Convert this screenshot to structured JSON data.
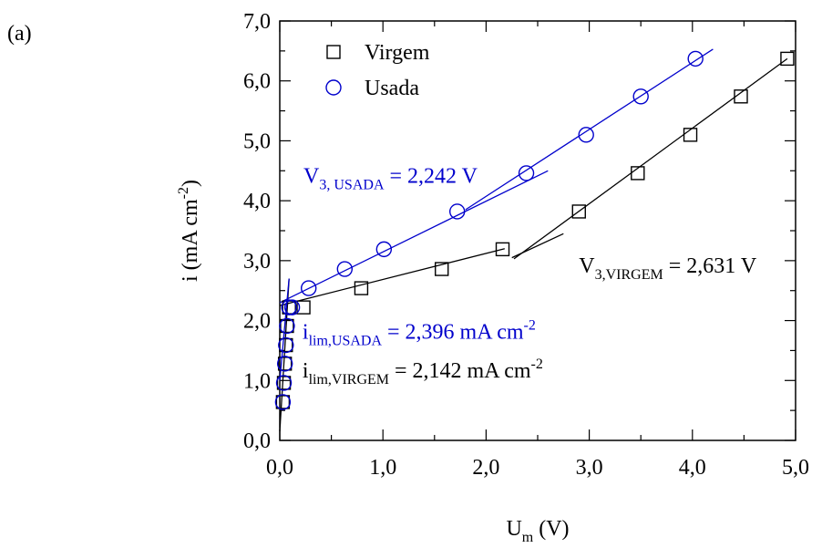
{
  "panel_label": "(a)",
  "chart_data": {
    "type": "scatter",
    "xlabel": "U",
    "xlabel_sub": "m",
    "xlabel_unit": "(V)",
    "ylabel": "i (mA cm",
    "ylabel_sup": "-2",
    "ylabel_close": ")",
    "xlim": [
      0,
      5
    ],
    "ylim": [
      0,
      7
    ],
    "x_ticks": [
      0,
      1,
      2,
      3,
      4,
      5
    ],
    "x_tick_labels": [
      "0,0",
      "1,0",
      "2,0",
      "3,0",
      "4,0",
      "5,0"
    ],
    "y_ticks": [
      0,
      1,
      2,
      3,
      4,
      5,
      6,
      7
    ],
    "y_tick_labels": [
      "0,0",
      "1,0",
      "2,0",
      "3,0",
      "4,0",
      "5,0",
      "6,0",
      "7,0"
    ],
    "grid": false,
    "legend_position": "top-left",
    "series": [
      {
        "name": "Virgem",
        "marker": "square",
        "color": "#000000",
        "x": [
          0.03,
          0.04,
          0.05,
          0.06,
          0.07,
          0.09,
          0.23,
          0.79,
          1.57,
          2.16,
          2.9,
          3.47,
          3.98,
          4.47,
          4.92
        ],
        "y": [
          0.64,
          0.96,
          1.28,
          1.59,
          1.91,
          2.22,
          2.22,
          2.54,
          2.86,
          3.19,
          3.82,
          4.46,
          5.1,
          5.74,
          6.37
        ]
      },
      {
        "name": "Usada",
        "marker": "circle",
        "color": "#0000cc",
        "x": [
          0.03,
          0.04,
          0.05,
          0.06,
          0.07,
          0.09,
          0.12,
          0.28,
          0.63,
          1.01,
          1.72,
          2.39,
          2.97,
          3.5,
          4.03
        ],
        "y": [
          0.64,
          0.96,
          1.28,
          1.59,
          1.91,
          2.22,
          2.22,
          2.54,
          2.86,
          3.19,
          3.82,
          4.46,
          5.1,
          5.74,
          6.37
        ]
      }
    ],
    "fit_lines": [
      {
        "color": "#000000",
        "points": [
          [
            0.0,
            2.25
          ],
          [
            2.18,
            3.2
          ]
        ]
      },
      {
        "color": "#000000",
        "points": [
          [
            2.27,
            3.03
          ],
          [
            4.92,
            6.37
          ]
        ]
      },
      {
        "color": "#000000",
        "points": [
          [
            0.0,
            0.15
          ],
          [
            0.09,
            2.7
          ]
        ]
      },
      {
        "color": "#0000cc",
        "points": [
          [
            0.0,
            2.3
          ],
          [
            2.6,
            4.5
          ]
        ]
      },
      {
        "color": "#0000cc",
        "points": [
          [
            1.8,
            3.85
          ],
          [
            4.2,
            6.53
          ]
        ]
      },
      {
        "color": "#0000cc",
        "points": [
          [
            0.0,
            1.0
          ],
          [
            0.09,
            2.7
          ]
        ]
      },
      {
        "color": "#000000",
        "points": [
          [
            2.25,
            3.05
          ],
          [
            2.75,
            3.45
          ]
        ]
      }
    ],
    "annotations": [
      {
        "id": "v3_usada",
        "main": "V",
        "sub": "3, USADA",
        "rest": " = 2,242 V",
        "color": "#0000cc",
        "x": 0.23,
        "y": 4.3
      },
      {
        "id": "v3_virgem",
        "main": "V",
        "sub": "3,VIRGEM",
        "rest": " = 2,631 V",
        "color": "#000000",
        "x": 2.9,
        "y": 2.8
      },
      {
        "id": "ilim_usada",
        "main": "i",
        "sub": "lim,USADA",
        "rest": " = 2,396 mA cm",
        "sup": "-2",
        "color": "#0000cc",
        "x": 0.22,
        "y": 1.7
      },
      {
        "id": "ilim_virgem",
        "main": "i",
        "sub": "lim,VIRGEM",
        "rest": " = 2,142 mA cm",
        "sup": "-2",
        "color": "#000000",
        "x": 0.22,
        "y": 1.05
      }
    ]
  }
}
